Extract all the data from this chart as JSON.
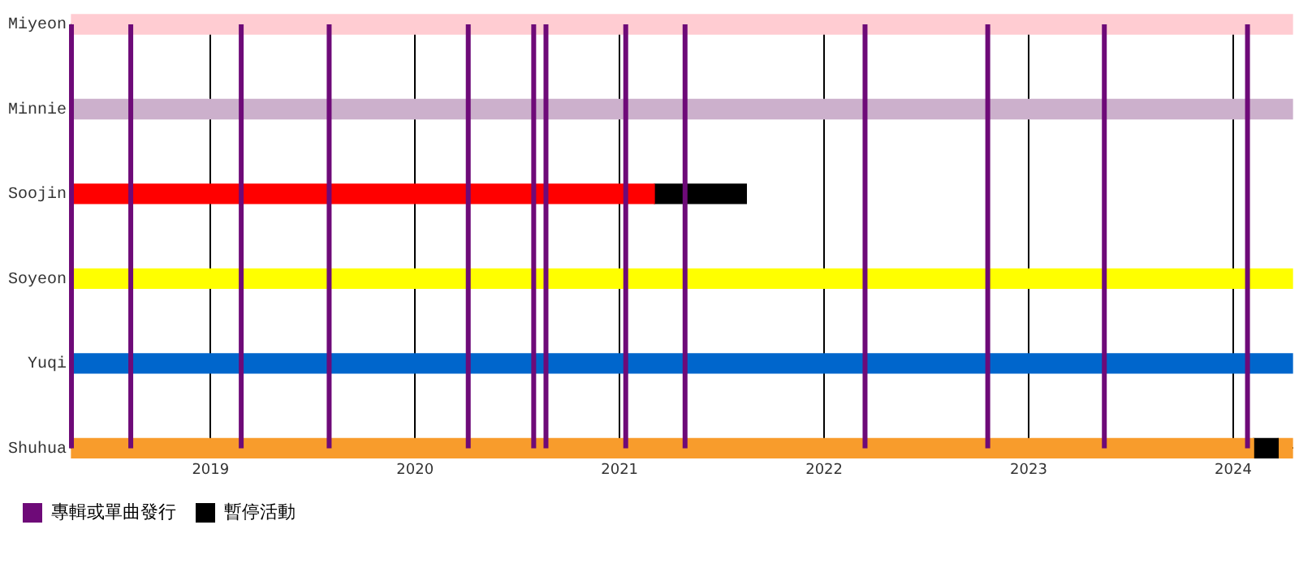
{
  "chart_data": {
    "type": "bar",
    "orientation": "horizontal",
    "categories": [
      "Miyeon",
      "Minnie",
      "Soojin",
      "Soyeon",
      "Yuqi",
      "Shuhua"
    ],
    "series": [
      {
        "colors": [
          "#ffccd2",
          "#ccb0cc",
          "#ff0000",
          "#ffff00",
          "#0066cc",
          "#f89c2c"
        ],
        "base": [
          2018.32,
          2018.32,
          2018.32,
          2018.32,
          2018.32,
          2018.32
        ],
        "values": [
          5.97,
          5.97,
          2.85,
          5.97,
          5.97,
          5.78
        ]
      },
      {
        "name": "暫停活動",
        "color": "#000000",
        "base": [
          null,
          null,
          2021.17,
          null,
          null,
          2024.1
        ],
        "values": [
          null,
          null,
          0.45,
          null,
          null,
          0.12
        ]
      },
      {
        "colors": [
          "#ffccd2",
          "#ccb0cc",
          "#ff0000",
          "#ffff00",
          "#0066cc",
          "#f89c2c"
        ],
        "base": [
          null,
          null,
          null,
          null,
          null,
          2024.22
        ],
        "values": [
          null,
          null,
          null,
          null,
          null,
          0.07
        ]
      }
    ],
    "xlim": [
      2018.32,
      2024.29
    ],
    "xticks": [
      2019,
      2020,
      2021,
      2022,
      2023,
      2024
    ],
    "grid": "x",
    "legend": "bottom left",
    "ref_lines": [
      {
        "axis": "x",
        "value": 2018.32,
        "color": "#6e0a78",
        "label": "專輯或單曲發行"
      },
      {
        "axis": "x",
        "value": 2018.61,
        "color": "#6e0a78"
      },
      {
        "axis": "x",
        "value": 2019.15,
        "color": "#6e0a78"
      },
      {
        "axis": "x",
        "value": 2019.58,
        "color": "#6e0a78"
      },
      {
        "axis": "x",
        "value": 2020.26,
        "color": "#6e0a78"
      },
      {
        "axis": "x",
        "value": 2020.58,
        "color": "#6e0a78"
      },
      {
        "axis": "x",
        "value": 2020.64,
        "color": "#6e0a78"
      },
      {
        "axis": "x",
        "value": 2021.03,
        "color": "#6e0a78"
      },
      {
        "axis": "x",
        "value": 2021.32,
        "color": "#6e0a78"
      },
      {
        "axis": "x",
        "value": 2022.2,
        "color": "#6e0a78"
      },
      {
        "axis": "x",
        "value": 2022.8,
        "color": "#6e0a78"
      },
      {
        "axis": "x",
        "value": 2023.37,
        "color": "#6e0a78"
      },
      {
        "axis": "x",
        "value": 2024.07,
        "color": "#6e0a78"
      }
    ]
  }
}
